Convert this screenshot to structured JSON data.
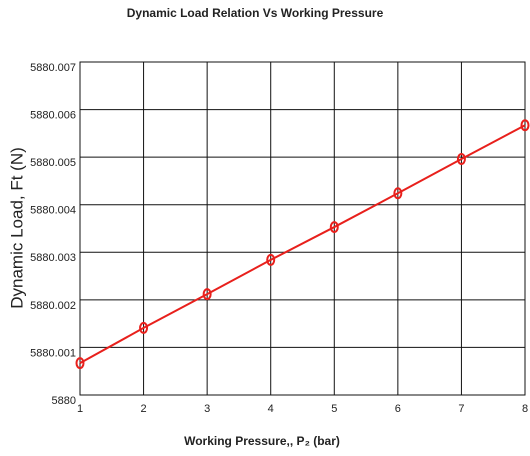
{
  "chart_data": {
    "type": "line",
    "title": "Dynamic Load Relation Vs Working Pressure",
    "x_label": "Working Pressure,, P₂ (bar)",
    "y_label": "Dynamic Load, Ft (N)",
    "x": [
      1,
      2,
      3,
      4,
      5,
      6,
      7,
      8
    ],
    "series": [
      {
        "name": "Dynamic Load",
        "color": "#e8201c",
        "values": [
          5880.00067,
          5880.00141,
          5880.00212,
          5880.00284,
          5880.00353,
          5880.00424,
          5880.00496,
          5880.00567
        ]
      }
    ],
    "xlim": [
      1,
      8
    ],
    "xticks": [
      1,
      2,
      3,
      4,
      5,
      6,
      7,
      8
    ],
    "ylim": [
      5880,
      5880.007
    ],
    "yticks": [
      5880,
      5880.001,
      5880.002,
      5880.003,
      5880.004,
      5880.005,
      5880.006,
      5880.007
    ],
    "grid": true
  }
}
